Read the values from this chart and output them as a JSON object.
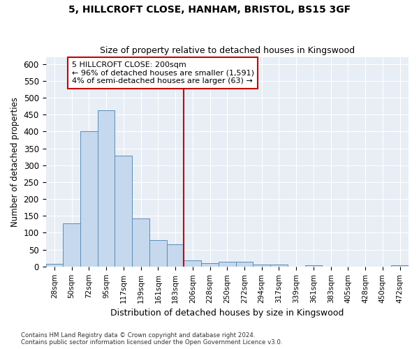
{
  "title": "5, HILLCROFT CLOSE, HANHAM, BRISTOL, BS15 3GF",
  "subtitle": "Size of property relative to detached houses in Kingswood",
  "xlabel": "Distribution of detached houses by size in Kingswood",
  "ylabel": "Number of detached properties",
  "bin_labels": [
    "28sqm",
    "50sqm",
    "72sqm",
    "95sqm",
    "117sqm",
    "139sqm",
    "161sqm",
    "183sqm",
    "206sqm",
    "228sqm",
    "250sqm",
    "272sqm",
    "294sqm",
    "317sqm",
    "339sqm",
    "361sqm",
    "383sqm",
    "405sqm",
    "428sqm",
    "450sqm",
    "472sqm"
  ],
  "bar_values": [
    8,
    127,
    400,
    462,
    328,
    143,
    79,
    65,
    19,
    11,
    15,
    15,
    6,
    6,
    0,
    4,
    0,
    0,
    0,
    0,
    4
  ],
  "bar_color": "#c5d8ed",
  "bar_edge_color": "#5b8db8",
  "vline_index": 8,
  "vline_color": "#cc0000",
  "annotation_line1": "5 HILLCROFT CLOSE: 200sqm",
  "annotation_line2": "← 96% of detached houses are smaller (1,591)",
  "annotation_line3": "4% of semi-detached houses are larger (63) →",
  "annotation_box_color": "#ffffff",
  "annotation_box_edge": "#cc0000",
  "ylim": [
    0,
    620
  ],
  "yticks": [
    0,
    50,
    100,
    150,
    200,
    250,
    300,
    350,
    400,
    450,
    500,
    550,
    600
  ],
  "fig_bg": "#ffffff",
  "plot_bg": "#e8eef5",
  "grid_color": "#ffffff",
  "footer_line1": "Contains HM Land Registry data © Crown copyright and database right 2024.",
  "footer_line2": "Contains public sector information licensed under the Open Government Licence v3.0."
}
